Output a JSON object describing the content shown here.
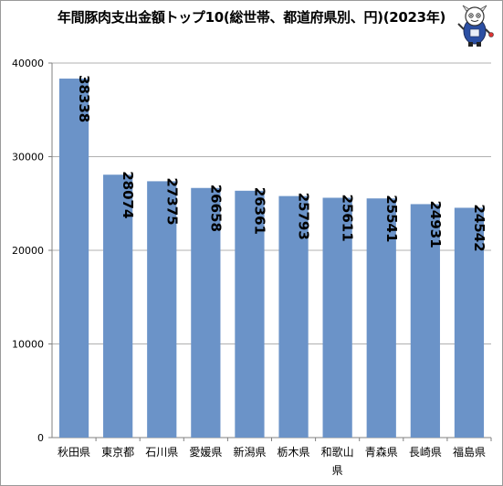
{
  "chart_data": {
    "type": "bar",
    "title": "年間豚肉支出金額トップ10(総世帯、都道府県別、円)(2023年)",
    "categories": [
      "秋田県",
      "東京都",
      "石川県",
      "愛媛県",
      "新潟県",
      "栃木県",
      "和歌山県",
      "青森県",
      "長崎県",
      "福島県"
    ],
    "values": [
      38338,
      28074,
      27375,
      26658,
      26361,
      25793,
      25611,
      25541,
      24931,
      24542
    ],
    "ylim": [
      0,
      40000
    ],
    "yticks": [
      0,
      10000,
      20000,
      30000,
      40000
    ],
    "xlabel": "",
    "ylabel": "",
    "grid": "horizontal",
    "legend": "none",
    "bar_color": "#6b93c8",
    "grid_color": "#b0b0b0"
  },
  "mascot_icon": "cartoon-mascot-icon"
}
